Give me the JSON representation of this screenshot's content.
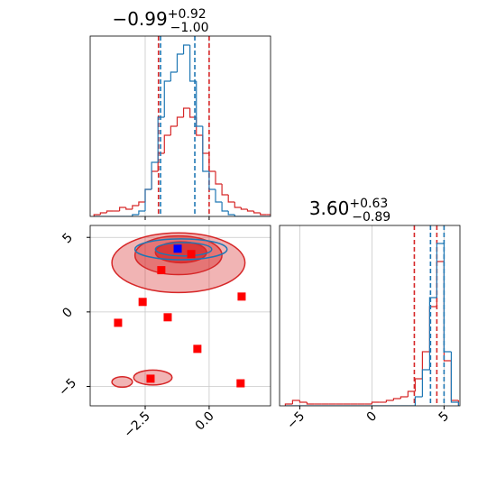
{
  "chart_data": [
    {
      "type": "histogram",
      "title": {
        "value": "−0.99",
        "upper": "+0.92",
        "lower": "−1.00"
      },
      "bins": [
        -4.5,
        -4.25,
        -4,
        -3.75,
        -3.5,
        -3.25,
        -3,
        -2.75,
        -2.5,
        -2.25,
        -2,
        -1.75,
        -1.5,
        -1.25,
        -1,
        -0.75,
        -0.5,
        -0.25,
        0,
        0.25,
        0.5,
        0.75,
        1,
        1.25,
        1.5,
        1.75,
        2,
        2.25,
        2.5
      ],
      "series": [
        {
          "color": "#d62728",
          "values": [
            0.01,
            0.02,
            0.03,
            0.03,
            0.05,
            0.04,
            0.06,
            0.08,
            0.15,
            0.25,
            0.35,
            0.45,
            0.5,
            0.55,
            0.6,
            0.55,
            0.45,
            0.35,
            0.25,
            0.18,
            0.12,
            0.08,
            0.05,
            0.04,
            0.03,
            0.02,
            0.01,
            0.01
          ],
          "quantiles": [
            -1.98,
            0.0
          ]
        },
        {
          "color": "#1f77b4",
          "values": [
            0,
            0,
            0,
            0,
            0,
            0,
            0.01,
            0.03,
            0.15,
            0.3,
            0.55,
            0.75,
            0.8,
            0.9,
            0.95,
            0.75,
            0.5,
            0.25,
            0.15,
            0.08,
            0.03,
            0.01,
            0,
            0,
            0,
            0,
            0,
            0
          ],
          "quantiles": [
            -1.9,
            -0.56
          ]
        }
      ],
      "xlim": [
        -4.65,
        2.4
      ],
      "ylim": [
        0,
        1
      ],
      "xticks": [
        -2.5,
        0
      ],
      "grid": true
    },
    {
      "type": "contour",
      "xlim": [
        -4.65,
        2.4
      ],
      "ylim": [
        -6.3,
        5.8
      ],
      "xticks": [
        {
          "value": -2.5,
          "label": "−2.5"
        },
        {
          "value": 0,
          "label": "0.0"
        }
      ],
      "yticks": [
        5,
        0,
        {
          "value": -5,
          "label": "−5"
        }
      ],
      "grid": true,
      "contours": [
        {
          "color": "#d62728",
          "levels": [
            {
              "x": -1.2,
              "y": 3.3,
              "rx": 2.6,
              "ry": 2.0
            },
            {
              "x": -1.2,
              "y": 3.8,
              "rx": 1.7,
              "ry": 1.3
            },
            {
              "x": -1.1,
              "y": 4.0,
              "rx": 1.0,
              "ry": 0.7
            },
            {
              "x": -2.2,
              "y": -4.4,
              "rx": 0.75,
              "ry": 0.5
            },
            {
              "x": -3.4,
              "y": -4.7,
              "rx": 0.4,
              "ry": 0.35
            }
          ]
        },
        {
          "color": "#1f77b4",
          "levels": [
            {
              "x": -1.1,
              "y": 4.2,
              "rx": 1.8,
              "ry": 0.7
            },
            {
              "x": -1.0,
              "y": 4.2,
              "rx": 1.1,
              "ry": 0.45
            }
          ]
        }
      ],
      "points": {
        "color": "#ff0000",
        "x": [
          -3.56,
          -2.6,
          -1.87,
          -1.62,
          -0.46,
          -0.7,
          1.27,
          1.23,
          -2.29
        ],
        "y": [
          -0.73,
          0.67,
          2.8,
          -0.36,
          -2.48,
          3.88,
          1.03,
          -4.79,
          -4.48
        ]
      },
      "truth": {
        "color": "#0000ff",
        "x": -1.23,
        "y": 4.24
      }
    },
    {
      "type": "histogram",
      "title": {
        "value": "3.60",
        "upper": "+0.63",
        "lower": "−0.89"
      },
      "bins": [
        -6,
        -5.5,
        -5,
        -4.5,
        -4,
        -3.5,
        -3,
        -2.5,
        -2,
        -1.5,
        -1,
        -0.5,
        0,
        0.5,
        1,
        1.5,
        2,
        2.5,
        3,
        3.5,
        4,
        4.5,
        5,
        5.5,
        6
      ],
      "series": [
        {
          "color": "#d62728",
          "values": [
            0.01,
            0.03,
            0.02,
            0.01,
            0.01,
            0.01,
            0.01,
            0.01,
            0.01,
            0.01,
            0.01,
            0.01,
            0.02,
            0.02,
            0.03,
            0.04,
            0.05,
            0.08,
            0.15,
            0.3,
            0.55,
            0.8,
            0.25,
            0.03
          ],
          "quantiles": [
            2.94,
            4.5
          ]
        },
        {
          "color": "#1f77b4",
          "values": [
            0,
            0,
            0,
            0,
            0,
            0,
            0,
            0,
            0,
            0,
            0,
            0,
            0,
            0,
            0,
            0,
            0,
            0,
            0.05,
            0.2,
            0.6,
            0.9,
            0.3,
            0.02
          ],
          "quantiles": [
            4.06,
            5.0
          ]
        }
      ],
      "xlim": [
        -6.4,
        6.1
      ],
      "ylim": [
        0,
        1
      ],
      "xticks": [
        {
          "value": -5,
          "label": "−5"
        },
        0,
        5
      ],
      "grid": true
    }
  ]
}
